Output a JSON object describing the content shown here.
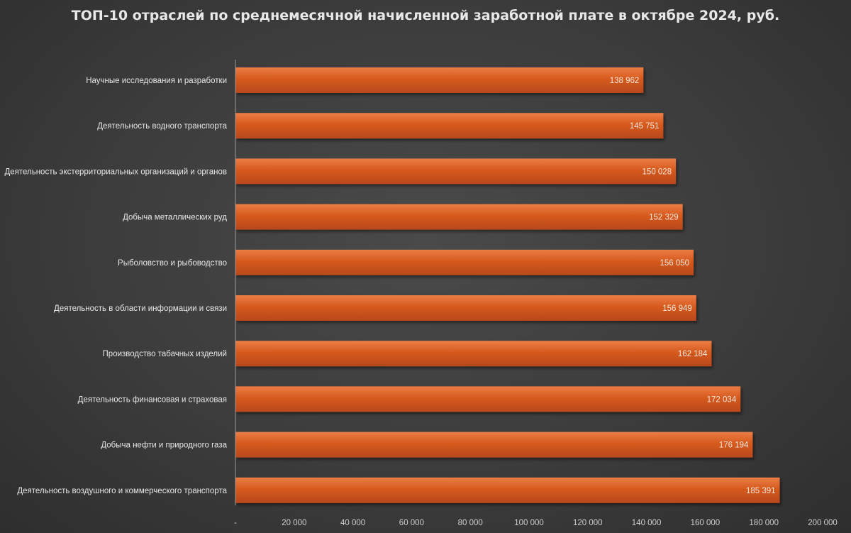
{
  "chart_data": {
    "type": "bar",
    "orientation": "horizontal",
    "title": "ТОП-10 отраслей по среднемесячной начисленной заработной плате в октябре 2024, руб.",
    "categories": [
      "Научные исследования и разработки",
      "Деятельность водного транспорта",
      "Деятельность экстерриториальных организаций и органов",
      "Добыча металлических руд",
      "Рыболовство и рыбоводство",
      "Деятельность в области информации и связи",
      "Производство табачных изделий",
      "Деятельность финансовая и страховая",
      "Добыча нефти и природного газа",
      "Деятельность воздушного и коммерческого транспорта"
    ],
    "values": [
      138962,
      145751,
      150028,
      152329,
      156050,
      156949,
      162184,
      172034,
      176194,
      185391
    ],
    "value_labels": [
      "138 962",
      "145 751",
      "150 028",
      "152 329",
      "156 050",
      "156 949",
      "162 184",
      "172 034",
      "176 194",
      "185 391"
    ],
    "xlim": [
      0,
      200000
    ],
    "x_ticks": [
      0,
      20000,
      40000,
      60000,
      80000,
      100000,
      120000,
      140000,
      160000,
      180000,
      200000
    ],
    "x_tick_labels": [
      "-",
      "20 000",
      "40 000",
      "60 000",
      "80 000",
      "100 000",
      "120 000",
      "140 000",
      "160 000",
      "180 000",
      "200 000"
    ],
    "grid": false,
    "legend": "none",
    "colors": {
      "bar": "#d65a1e",
      "bar_highlight": "#e8743a",
      "bar_label": "#f2e6dc",
      "category_label": "#e6e6e6",
      "tick_label": "#cfcfcf",
      "axis_line": "#9a9a9a"
    }
  }
}
